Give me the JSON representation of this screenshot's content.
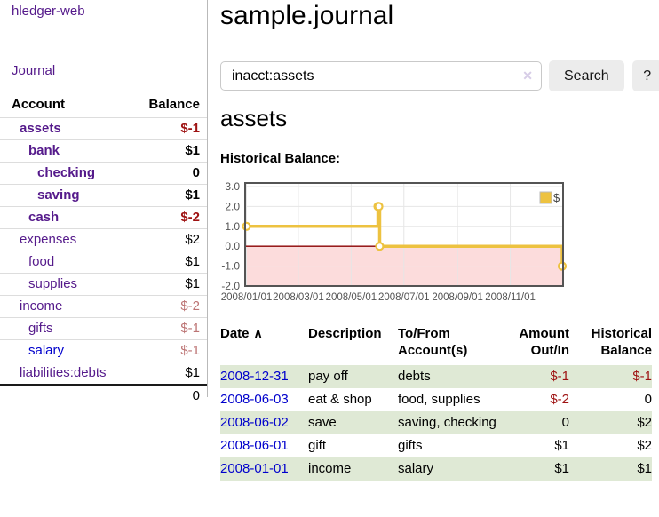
{
  "colors": {
    "link_visited": "#551a8b",
    "link_unvisited": "#0000cc",
    "negative_strong": "#9e1212",
    "negative_soft": "#bc7474",
    "row_stripe_green": "#dfe9d5",
    "chart_series": "#EDC240",
    "chart_negative_fill": "#fcdcdc",
    "chart_zero_line": "#8b0000",
    "chart_grid": "#e6e6e6",
    "chart_border": "#545454"
  },
  "brand": {
    "title": "hledger-web"
  },
  "nav": {
    "journal": "Journal"
  },
  "sidebar": {
    "header": {
      "account": "Account",
      "balance": "Balance"
    },
    "accounts": [
      {
        "name": "assets",
        "indent": 0,
        "bold": true,
        "balance": "$-1",
        "neg": "strong"
      },
      {
        "name": "bank",
        "indent": 1,
        "bold": true,
        "balance": "$1"
      },
      {
        "name": "checking",
        "indent": 2,
        "bold": true,
        "balance": "0"
      },
      {
        "name": "saving",
        "indent": 2,
        "bold": true,
        "balance": "$1"
      },
      {
        "name": "cash",
        "indent": 1,
        "bold": true,
        "balance": "$-2",
        "neg": "strong"
      },
      {
        "name": "expenses",
        "indent": 0,
        "bold": false,
        "balance": "$2"
      },
      {
        "name": "food",
        "indent": 1,
        "bold": false,
        "balance": "$1"
      },
      {
        "name": "supplies",
        "indent": 1,
        "bold": false,
        "balance": "$1"
      },
      {
        "name": "income",
        "indent": 0,
        "bold": false,
        "balance": "$-2",
        "neg": "soft"
      },
      {
        "name": "gifts",
        "indent": 1,
        "bold": false,
        "balance": "$-1",
        "neg": "soft"
      },
      {
        "name": "salary",
        "indent": 1,
        "bold": false,
        "balance": "$-1",
        "neg": "soft",
        "link": "blue"
      },
      {
        "name": "liabilities:debts",
        "indent": 0,
        "bold": false,
        "balance": "$1"
      }
    ],
    "total": "0"
  },
  "main": {
    "title": "sample.journal",
    "search": {
      "value": "inacct:assets",
      "clear": "✕",
      "button": "Search",
      "help": "?"
    },
    "account_title": "assets",
    "chart_heading": "Historical Balance:"
  },
  "chart_data": {
    "type": "line",
    "title": "Historical Balance:",
    "step": true,
    "x": [
      "2008-01-01",
      "2008-06-01",
      "2008-06-02",
      "2008-06-03",
      "2008-12-31"
    ],
    "series": [
      {
        "name": "$",
        "values": [
          1,
          2,
          2,
          0,
          -1
        ]
      }
    ],
    "xlim": [
      "2008-01-01",
      "2008-12-31"
    ],
    "ylim": [
      -2,
      3
    ],
    "y_ticks": [
      {
        "value": 3,
        "label": "3.0"
      },
      {
        "value": 2,
        "label": "2.0"
      },
      {
        "value": 1,
        "label": "1.0"
      },
      {
        "value": 0,
        "label": "0.0"
      },
      {
        "value": -1,
        "label": "-1.0"
      },
      {
        "value": -2,
        "label": "-2.0"
      }
    ],
    "x_ticks": [
      {
        "date": "2008-01-01",
        "label": "2008/01/01"
      },
      {
        "date": "2008-03-01",
        "label": "2008/03/01"
      },
      {
        "date": "2008-05-01",
        "label": "2008/05/01"
      },
      {
        "date": "2008-07-01",
        "label": "2008/07/01"
      },
      {
        "date": "2008-09-01",
        "label": "2008/09/01"
      },
      {
        "date": "2008-11-01",
        "label": "2008/11/01"
      }
    ],
    "grid": true,
    "negative_region_shaded": true,
    "legend": {
      "label": "$",
      "position": "top-right"
    }
  },
  "register": {
    "columns": {
      "date": "Date",
      "sort_icon": "∧",
      "description": "Description",
      "accounts_line1": "To/From",
      "accounts_line2": "Account(s)",
      "amount_line1": "Amount",
      "amount_line2": "Out/In",
      "balance_line1": "Historical",
      "balance_line2": "Balance"
    },
    "rows": [
      {
        "date": "2008-12-31",
        "description": "pay off",
        "accounts": "debts",
        "amount": "$-1",
        "balance": "$-1"
      },
      {
        "date": "2008-06-03",
        "description": "eat & shop",
        "accounts": "food, supplies",
        "amount": "$-2",
        "balance": "0"
      },
      {
        "date": "2008-06-02",
        "description": "save",
        "accounts": "saving, checking",
        "amount": "0",
        "balance": "$2"
      },
      {
        "date": "2008-06-01",
        "description": "gift",
        "accounts": "gifts",
        "amount": "$1",
        "balance": "$2"
      },
      {
        "date": "2008-01-01",
        "description": "income",
        "accounts": "salary",
        "amount": "$1",
        "balance": "$1"
      }
    ]
  }
}
